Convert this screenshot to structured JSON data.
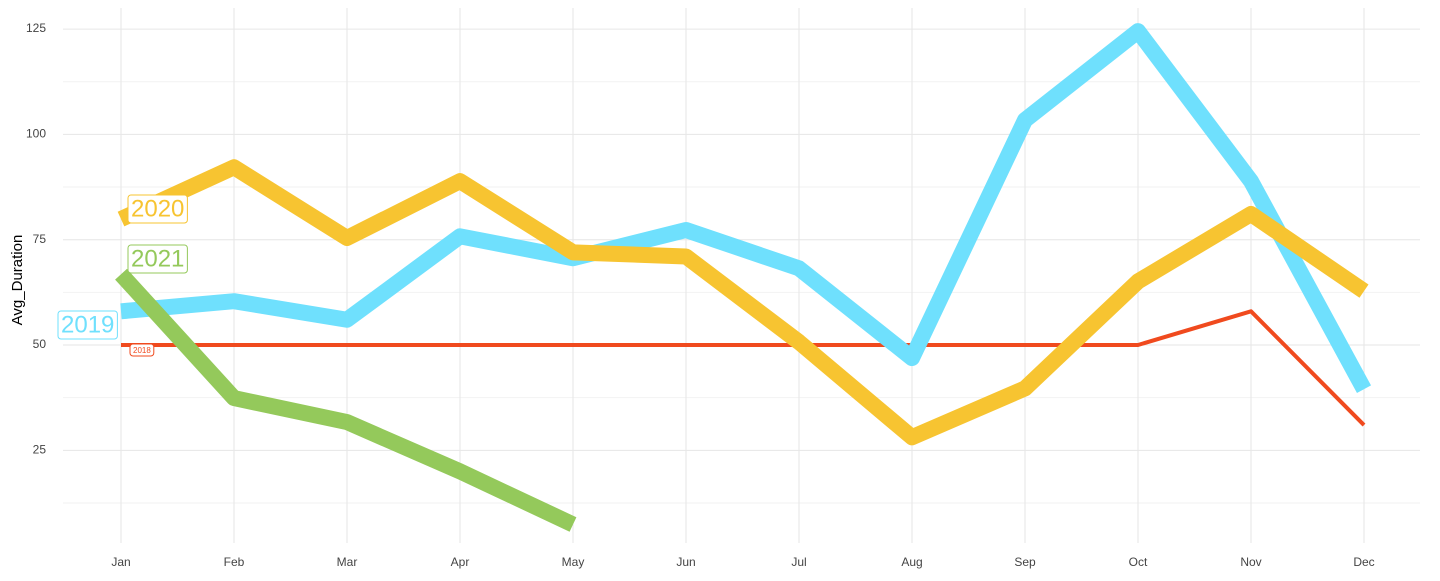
{
  "chart_data": {
    "type": "line",
    "ylabel": "Avg_Duration",
    "categories": [
      "Jan",
      "Feb",
      "Mar",
      "Apr",
      "May",
      "Jun",
      "Jul",
      "Aug",
      "Sep",
      "Oct",
      "Nov",
      "Dec"
    ],
    "series": [
      {
        "name": "2018",
        "color": "#f04a1e",
        "values": [
          50,
          50,
          50,
          50,
          50,
          50,
          50,
          50,
          50,
          50,
          58,
          31
        ]
      },
      {
        "name": "2019",
        "color": "#6fe0fd",
        "values": [
          58,
          60.4,
          56,
          75.8,
          70.6,
          77.3,
          68.2,
          46.9,
          103.4,
          124.5,
          88.9,
          39.5
        ]
      },
      {
        "name": "2020",
        "color": "#f7c431",
        "values": [
          79.9,
          92.2,
          75.4,
          88.9,
          72,
          71,
          50.7,
          28.1,
          39.7,
          65.1,
          81.1,
          62.8
        ]
      },
      {
        "name": "2021",
        "color": "#94c95b",
        "values": [
          66.8,
          37.4,
          31.7,
          20,
          7.4,
          null,
          null,
          null,
          null,
          null,
          null,
          null
        ]
      }
    ],
    "ylim": [
      3,
      130
    ],
    "yticks": [
      25,
      50,
      75,
      100,
      125
    ],
    "minor_yticks": [
      12.5,
      37.5,
      62.5,
      87.5,
      112.5
    ],
    "grid": true
  }
}
